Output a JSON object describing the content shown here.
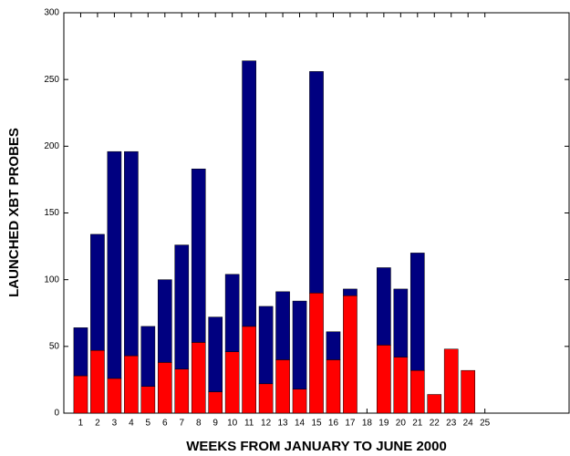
{
  "chart_data": {
    "type": "stacked_bar",
    "x_label": "WEEKS FROM JANUARY TO JUNE 2000",
    "y_label": "LAUNCHED XBT PROBES",
    "x": [
      1,
      2,
      3,
      4,
      5,
      6,
      7,
      8,
      9,
      10,
      11,
      12,
      13,
      14,
      15,
      16,
      17,
      18,
      19,
      20,
      21,
      22,
      23,
      24,
      25
    ],
    "series": [
      {
        "color": "#ff0000",
        "values": [
          28,
          47,
          26,
          43,
          20,
          38,
          33,
          53,
          16,
          46,
          65,
          22,
          40,
          18,
          90,
          40,
          88,
          null,
          51,
          42,
          32,
          14,
          48,
          32,
          null
        ]
      },
      {
        "color": "#000080",
        "values": [
          36,
          87,
          170,
          153,
          45,
          62,
          93,
          130,
          56,
          58,
          199,
          58,
          51,
          66,
          166,
          21,
          5,
          null,
          58,
          51,
          88,
          null,
          null,
          null,
          null
        ]
      }
    ],
    "xlim": [
      0,
      30
    ],
    "xticks": [
      1,
      2,
      3,
      4,
      5,
      6,
      7,
      8,
      9,
      10,
      11,
      12,
      13,
      14,
      15,
      16,
      17,
      18,
      19,
      20,
      21,
      22,
      23,
      24,
      25
    ],
    "ylim": [
      0,
      300
    ],
    "yticks": [
      0,
      50,
      100,
      150,
      200,
      250,
      300
    ]
  }
}
